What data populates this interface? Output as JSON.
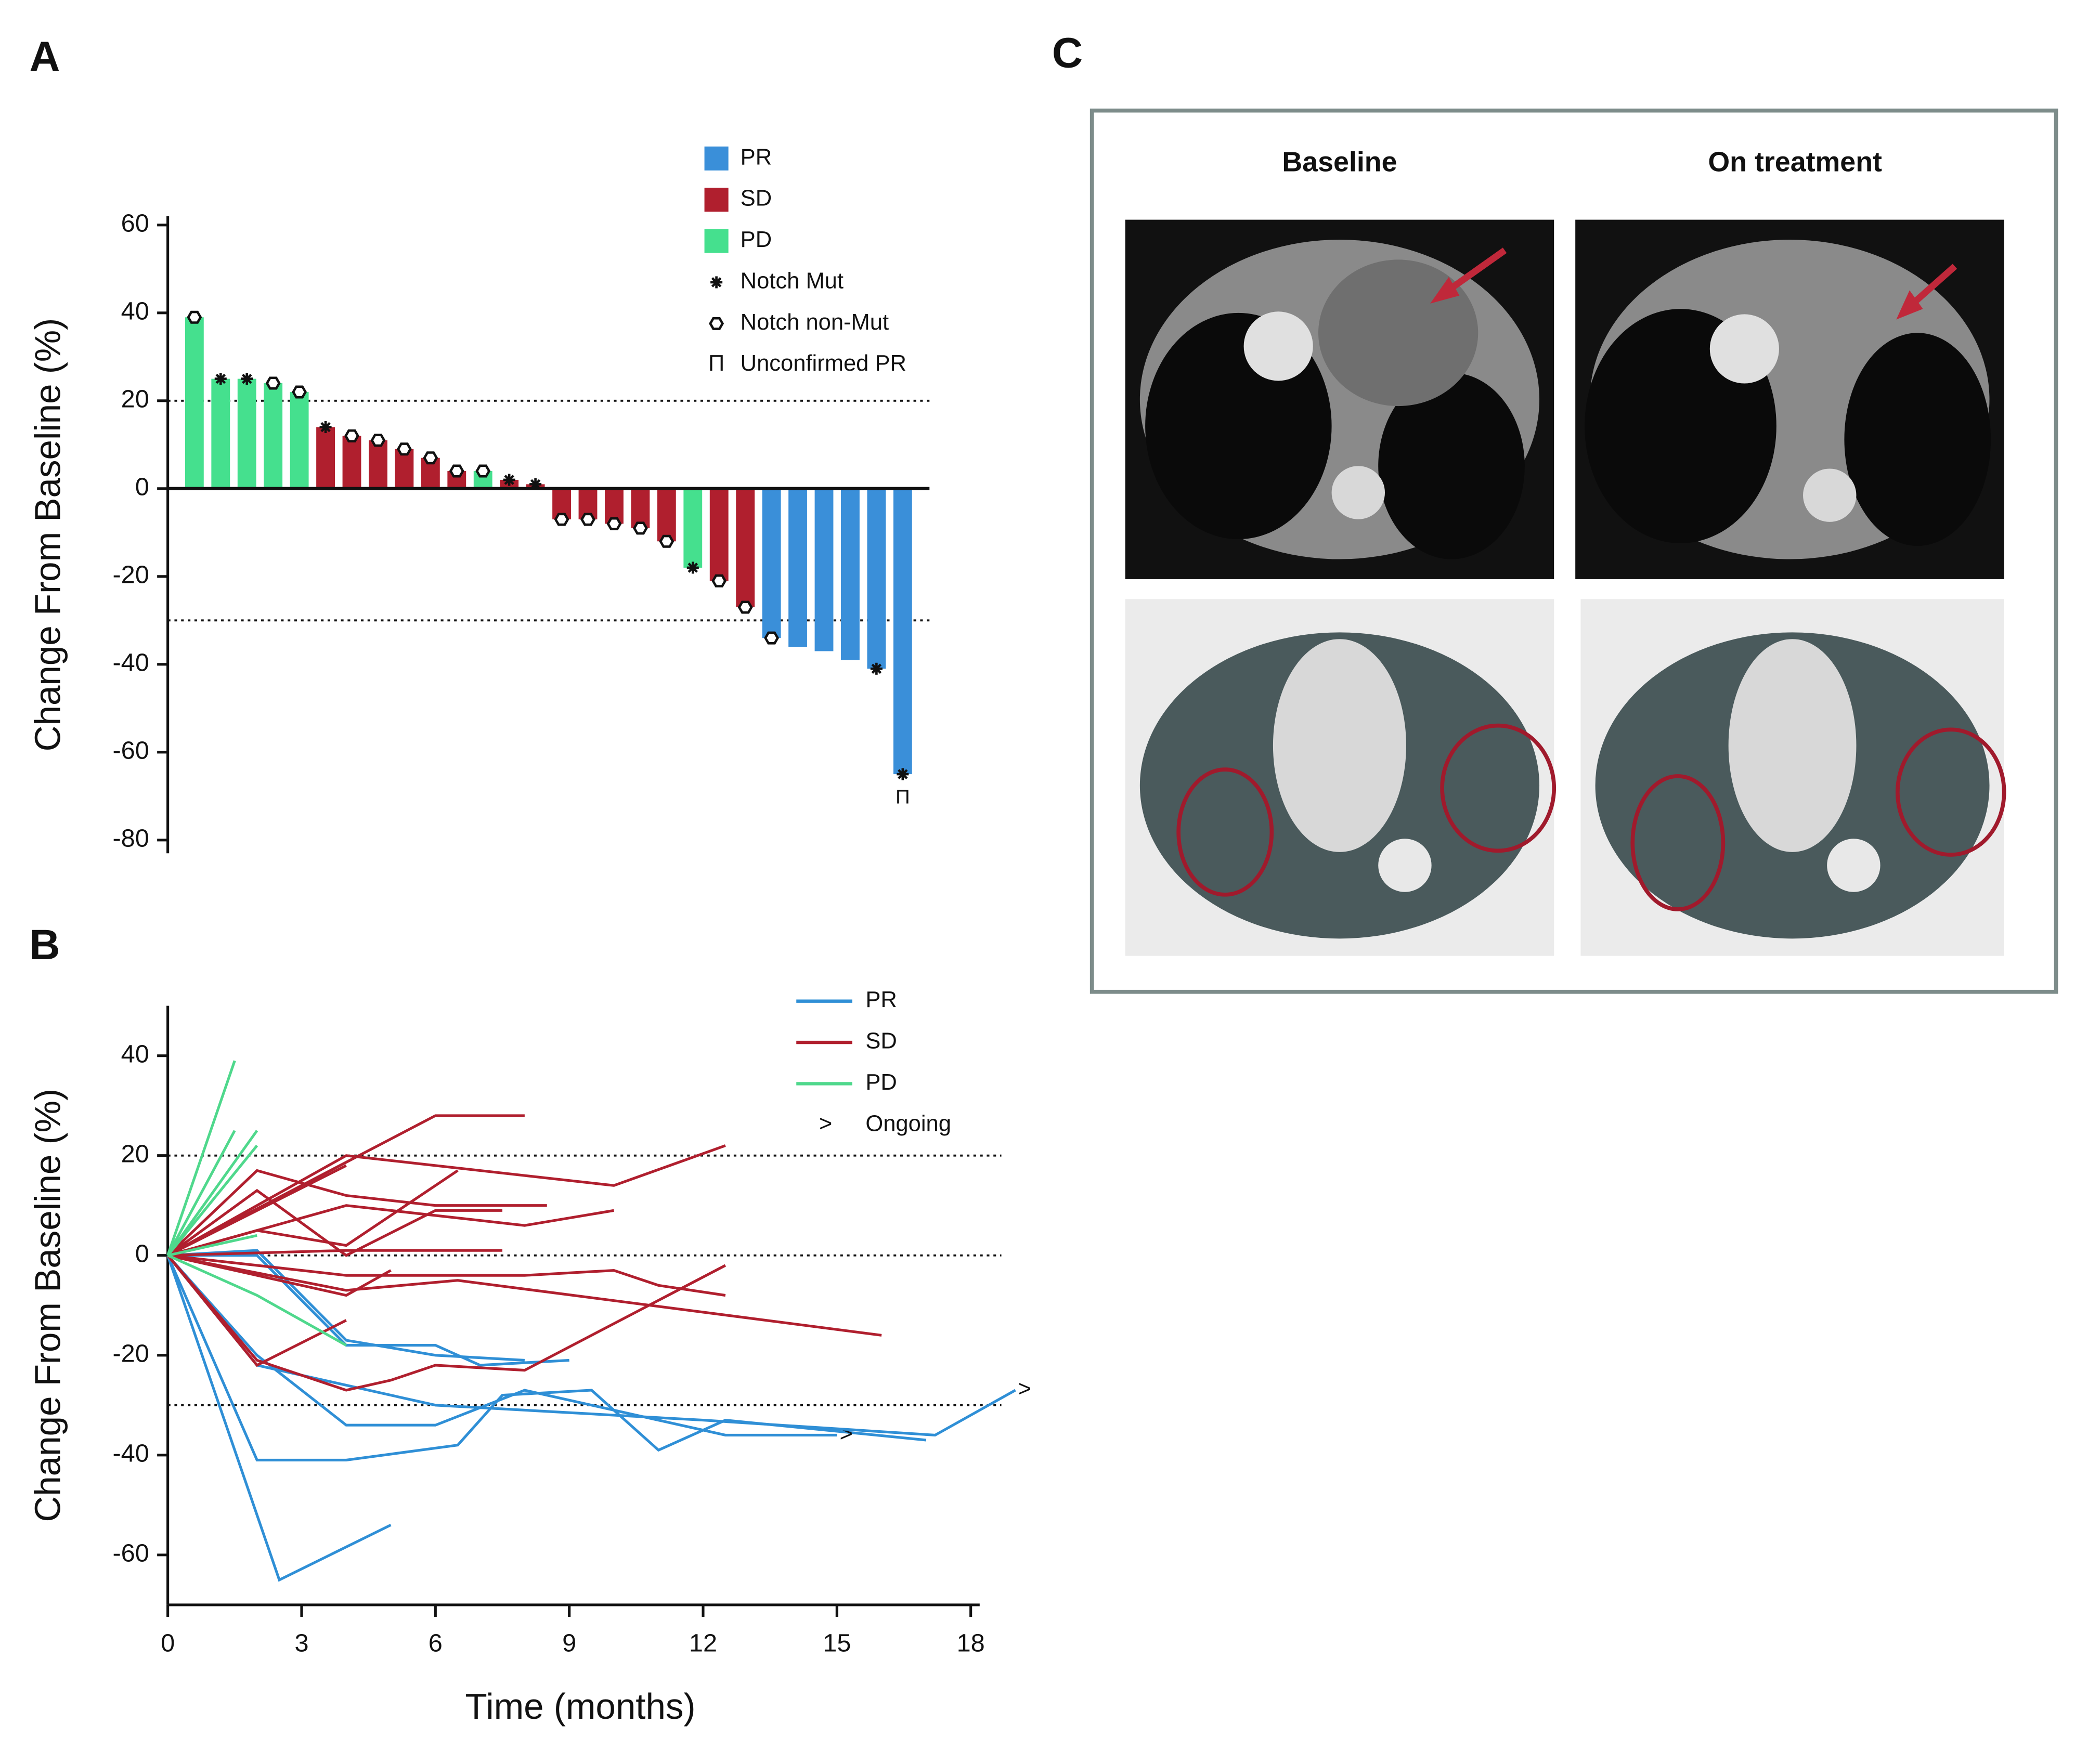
{
  "panel_labels": [
    "A",
    "B",
    "C"
  ],
  "ct_panel": {
    "columns": [
      "Baseline",
      "On treatment"
    ]
  },
  "chart_data": [
    {
      "type": "bar",
      "y_label": "Change From Baseline (%)",
      "categories": [
        null,
        null,
        null,
        null,
        null,
        null,
        null,
        null,
        null,
        null,
        null,
        null,
        null,
        null,
        null,
        null,
        null,
        null,
        null,
        null,
        null,
        null,
        null,
        null,
        null,
        null,
        null,
        null
      ],
      "values": [
        39,
        25,
        25,
        24,
        22,
        14,
        12,
        11,
        9,
        7,
        4,
        4,
        2,
        1,
        -7,
        -7,
        -8,
        -9,
        -12,
        -18,
        -21,
        -27,
        -34,
        -36,
        -37,
        -39,
        -41,
        -65
      ],
      "status": [
        "PD",
        "PD",
        "PD",
        "PD",
        "PD",
        "SD",
        "SD",
        "SD",
        "SD",
        "SD",
        "SD",
        "PD",
        "SD",
        "SD",
        "SD",
        "SD",
        "SD",
        "SD",
        "SD",
        "PD",
        "SD",
        "SD",
        "PR",
        "PR",
        "PR",
        "PR",
        "PR",
        "PR"
      ],
      "markers": [
        "non-mut",
        "mut",
        "mut",
        "non-mut",
        "non-mut",
        "mut",
        "non-mut",
        "non-mut",
        "non-mut",
        "non-mut",
        "non-mut",
        "non-mut",
        "mut",
        "mut",
        "non-mut",
        "non-mut",
        "non-mut",
        "non-mut",
        "non-mut",
        "mut",
        "non-mut",
        "non-mut",
        "non-mut",
        null,
        null,
        null,
        "mut",
        "mut"
      ],
      "unconfirmed": [
        false,
        false,
        false,
        false,
        false,
        false,
        false,
        false,
        false,
        false,
        false,
        false,
        false,
        false,
        false,
        false,
        false,
        false,
        false,
        false,
        false,
        false,
        false,
        false,
        false,
        false,
        false,
        true
      ],
      "legend": [
        {
          "name": "PR",
          "color": "#3a8fd9"
        },
        {
          "name": "SD",
          "color": "#b01f2e"
        },
        {
          "name": "PD",
          "color": "#45e08e"
        },
        {
          "name": "Notch Mut",
          "marker": "mut"
        },
        {
          "name": "Notch non-Mut",
          "marker": "non-mut"
        },
        {
          "name": "Unconfirmed PR",
          "symbol": "Π"
        }
      ],
      "ylim": [
        -83,
        62
      ],
      "yticks": [
        -80,
        -60,
        -40,
        -20,
        0,
        20,
        40,
        60
      ],
      "reference_lines": [
        20,
        -30
      ]
    },
    {
      "type": "line",
      "y_label": "Change From Baseline (%)",
      "x_label": "Time (months)",
      "legend": [
        {
          "name": "PR",
          "color": "#2f8fd6"
        },
        {
          "name": "SD",
          "color": "#b01f2e"
        },
        {
          "name": "PD",
          "color": "#4fd88c"
        },
        {
          "name": "Ongoing",
          "symbol": ">"
        }
      ],
      "series": [
        {
          "status": "PR",
          "x": [
            0,
            2.5,
            5
          ],
          "values": [
            0,
            -65,
            -54
          ],
          "ongoing": false
        },
        {
          "status": "PR",
          "x": [
            0,
            2,
            4,
            6.5,
            7.5,
            9.5,
            11,
            12.5,
            17
          ],
          "values": [
            0,
            -41,
            -41,
            -38,
            -28,
            -27,
            -39,
            -33,
            -37
          ],
          "ongoing": false
        },
        {
          "status": "PR",
          "x": [
            0,
            2,
            4,
            6,
            8,
            12.5,
            15
          ],
          "values": [
            0,
            -20,
            -34,
            -34,
            -27,
            -36,
            -36
          ],
          "ongoing": true
        },
        {
          "status": "PR",
          "x": [
            0,
            2,
            6,
            12,
            17.2,
            19
          ],
          "values": [
            0,
            -22,
            -30,
            -33,
            -36,
            -27
          ],
          "ongoing": true
        },
        {
          "status": "PR",
          "x": [
            0,
            2,
            4,
            6,
            7,
            9
          ],
          "values": [
            0,
            0,
            -18,
            -18,
            -22,
            -21
          ],
          "ongoing": false
        },
        {
          "status": "PR",
          "x": [
            0,
            2,
            4,
            6,
            8
          ],
          "values": [
            0,
            1,
            -17,
            -20,
            -21
          ],
          "ongoing": false
        },
        {
          "status": "SD",
          "x": [
            0,
            6,
            8
          ],
          "values": [
            0,
            28,
            28
          ],
          "ongoing": false
        },
        {
          "status": "SD",
          "x": [
            0,
            2,
            4,
            8,
            10,
            12.5
          ],
          "values": [
            0,
            10,
            20,
            16,
            14,
            22
          ],
          "ongoing": false
        },
        {
          "status": "SD",
          "x": [
            0,
            4
          ],
          "values": [
            0,
            18
          ],
          "ongoing": false
        },
        {
          "status": "SD",
          "x": [
            0,
            2,
            4,
            6,
            8.5
          ],
          "values": [
            0,
            17,
            12,
            10,
            10
          ],
          "ongoing": false
        },
        {
          "status": "SD",
          "x": [
            0,
            4,
            6,
            8,
            10
          ],
          "values": [
            0,
            10,
            8,
            6,
            9
          ],
          "ongoing": false
        },
        {
          "status": "SD",
          "x": [
            0,
            2,
            4,
            6.5
          ],
          "values": [
            0,
            5,
            2,
            17
          ],
          "ongoing": false
        },
        {
          "status": "SD",
          "x": [
            0,
            4,
            7.5
          ],
          "values": [
            0,
            1,
            1
          ],
          "ongoing": false
        },
        {
          "status": "SD",
          "x": [
            0,
            2,
            4,
            8,
            10,
            11,
            12.5
          ],
          "values": [
            0,
            -2,
            -4,
            -4,
            -3,
            -6,
            -8
          ],
          "ongoing": false
        },
        {
          "status": "SD",
          "x": [
            0,
            4,
            6.5,
            16
          ],
          "values": [
            0,
            -7,
            -5,
            -16
          ],
          "ongoing": false
        },
        {
          "status": "SD",
          "x": [
            0,
            2,
            4,
            5,
            6,
            8,
            12.5
          ],
          "values": [
            0,
            -21,
            -27,
            -25,
            -22,
            -23,
            -2
          ],
          "ongoing": false
        },
        {
          "status": "SD",
          "x": [
            0,
            2,
            4
          ],
          "values": [
            0,
            -22,
            -13
          ],
          "ongoing": false
        },
        {
          "status": "SD",
          "x": [
            0,
            2,
            4,
            5
          ],
          "values": [
            0,
            -4,
            -8,
            -3
          ],
          "ongoing": false
        },
        {
          "status": "SD",
          "x": [
            0,
            2,
            4,
            6,
            7.5
          ],
          "values": [
            0,
            13,
            0,
            9,
            9
          ],
          "ongoing": false
        },
        {
          "status": "PD",
          "x": [
            0,
            1.5
          ],
          "values": [
            0,
            39
          ],
          "ongoing": false
        },
        {
          "status": "PD",
          "x": [
            0,
            1.5
          ],
          "values": [
            0,
            25
          ],
          "ongoing": false
        },
        {
          "status": "PD",
          "x": [
            0,
            2
          ],
          "values": [
            0,
            25
          ],
          "ongoing": false
        },
        {
          "status": "PD",
          "x": [
            0,
            2
          ],
          "values": [
            0,
            22
          ],
          "ongoing": false
        },
        {
          "status": "PD",
          "x": [
            0,
            2
          ],
          "values": [
            0,
            4
          ],
          "ongoing": false
        },
        {
          "status": "PD",
          "x": [
            0,
            2,
            4
          ],
          "values": [
            0,
            -8,
            -18
          ],
          "ongoing": false
        }
      ],
      "xlim": [
        0,
        18.2
      ],
      "xticks": [
        0,
        3,
        6,
        9,
        12,
        15,
        18
      ],
      "ylim": [
        -70,
        50
      ],
      "yticks": [
        -60,
        -40,
        -20,
        0,
        20,
        40
      ],
      "reference_lines": [
        20,
        0,
        -30
      ]
    }
  ]
}
